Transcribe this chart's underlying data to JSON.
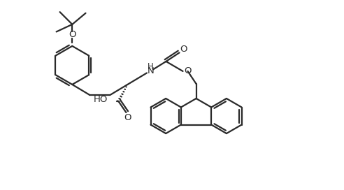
{
  "bg": "#ffffff",
  "lc": "#2a2a2a",
  "lw": 1.6,
  "figsize": [
    4.92,
    2.72
  ],
  "dpi": 100,
  "xlim": [
    0,
    9.8
  ],
  "ylim": [
    0,
    5.4
  ]
}
